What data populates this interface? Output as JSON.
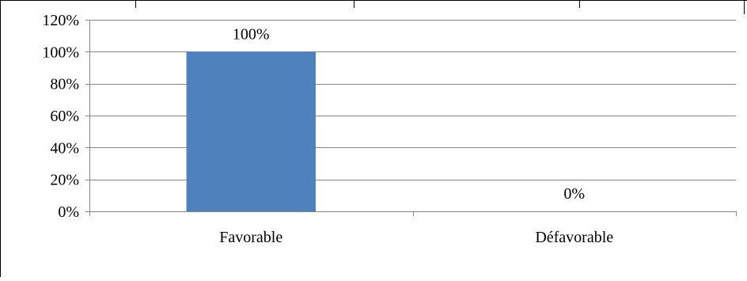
{
  "chart_data": {
    "type": "bar",
    "categories": [
      "Favorable",
      "Défavorable"
    ],
    "series": [
      {
        "values": [
          100,
          0
        ],
        "color": "#4F81BD"
      }
    ],
    "data_labels": [
      "100%",
      "0%"
    ],
    "ylim": [
      0,
      120
    ],
    "y_ticks": [
      0,
      20,
      40,
      60,
      80,
      100,
      120
    ],
    "y_tick_labels": [
      "0%",
      "20%",
      "40%",
      "60%",
      "80%",
      "100%",
      "120%"
    ],
    "grid": true,
    "title": "",
    "xlabel": "",
    "ylabel": ""
  }
}
